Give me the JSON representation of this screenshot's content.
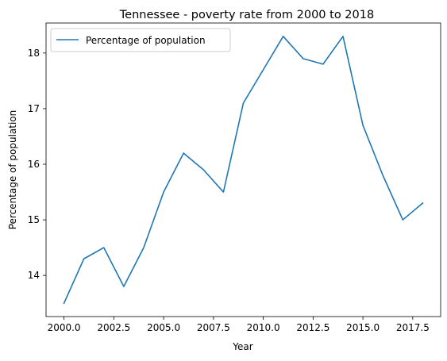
{
  "chart_data": {
    "type": "line",
    "title": "Tennessee - poverty rate from 2000 to 2018",
    "xlabel": "Year",
    "ylabel": "Percentage of population",
    "xlim": [
      1999.1,
      2018.9
    ],
    "ylim": [
      13.26,
      18.54
    ],
    "x_ticks": [
      2000.0,
      2002.5,
      2005.0,
      2007.5,
      2010.0,
      2012.5,
      2015.0,
      2017.5
    ],
    "x_tick_labels": [
      "2000.0",
      "2002.5",
      "2005.0",
      "2007.5",
      "2010.0",
      "2012.5",
      "2015.0",
      "2017.5"
    ],
    "y_ticks": [
      14,
      15,
      16,
      17,
      18
    ],
    "y_tick_labels": [
      "14",
      "15",
      "16",
      "17",
      "18"
    ],
    "grid": false,
    "legend_position": "top-left",
    "series": [
      {
        "name": "Percentage of population",
        "color": "#1f77b4",
        "x": [
          2000,
          2001,
          2002,
          2003,
          2004,
          2005,
          2006,
          2007,
          2008,
          2009,
          2010,
          2011,
          2012,
          2013,
          2014,
          2015,
          2016,
          2017,
          2018
        ],
        "values": [
          13.5,
          14.3,
          14.5,
          13.8,
          14.5,
          15.5,
          16.2,
          15.9,
          15.5,
          17.1,
          17.7,
          18.3,
          17.9,
          17.8,
          18.3,
          16.7,
          15.8,
          15.0,
          15.3
        ]
      }
    ]
  }
}
